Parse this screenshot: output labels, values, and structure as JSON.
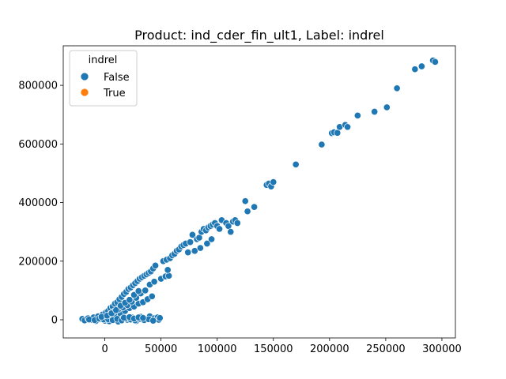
{
  "chart_data": {
    "type": "scatter",
    "title": "Product: ind_cder_fin_ult1, Label: indrel",
    "xlabel": "",
    "ylabel": "",
    "xlim": [
      -37000,
      312000
    ],
    "ylim": [
      -62000,
      935000
    ],
    "x_ticks": [
      0,
      50000,
      100000,
      150000,
      200000,
      250000,
      300000
    ],
    "x_tick_labels": [
      "0",
      "50000",
      "100000",
      "150000",
      "200000",
      "250000",
      "300000"
    ],
    "y_ticks": [
      0,
      200000,
      400000,
      600000,
      800000
    ],
    "y_tick_labels": [
      "0",
      "200000",
      "400000",
      "600000",
      "800000"
    ],
    "grid": false,
    "legend": {
      "title": "indrel",
      "placement": "top-left",
      "entries": [
        {
          "name": "False",
          "color": "#1f77b4"
        },
        {
          "name": "True",
          "color": "#ff7f0e"
        }
      ]
    },
    "series": [
      {
        "name": "False",
        "color": "#1f77b4",
        "points": [
          [
            -20000,
            3000
          ],
          [
            -18000,
            -2000
          ],
          [
            -15000,
            5000
          ],
          [
            -12000,
            0
          ],
          [
            -10000,
            8000
          ],
          [
            -8000,
            -4000
          ],
          [
            -6000,
            12000
          ],
          [
            -4000,
            2000
          ],
          [
            -2000,
            18000
          ],
          [
            0,
            -3000
          ],
          [
            1000,
            25000
          ],
          [
            2000,
            6000
          ],
          [
            3000,
            30000
          ],
          [
            4000,
            -5000
          ],
          [
            5000,
            40000
          ],
          [
            6000,
            10000
          ],
          [
            7000,
            45000
          ],
          [
            8000,
            2000
          ],
          [
            9000,
            55000
          ],
          [
            10000,
            15000
          ],
          [
            11000,
            60000
          ],
          [
            12000,
            -6000
          ],
          [
            13000,
            70000
          ],
          [
            14000,
            20000
          ],
          [
            15000,
            78000
          ],
          [
            16000,
            5000
          ],
          [
            17000,
            88000
          ],
          [
            18000,
            30000
          ],
          [
            19000,
            95000
          ],
          [
            20000,
            0
          ],
          [
            21000,
            105000
          ],
          [
            22000,
            40000
          ],
          [
            23000,
            110000
          ],
          [
            24000,
            8000
          ],
          [
            25000,
            118000
          ],
          [
            26000,
            45000
          ],
          [
            27000,
            125000
          ],
          [
            28000,
            -4000
          ],
          [
            29000,
            132000
          ],
          [
            30000,
            55000
          ],
          [
            31000,
            140000
          ],
          [
            32000,
            10000
          ],
          [
            33000,
            145000
          ],
          [
            34000,
            60000
          ],
          [
            35000,
            150000
          ],
          [
            36000,
            3000
          ],
          [
            37000,
            155000
          ],
          [
            38000,
            70000
          ],
          [
            39000,
            160000
          ],
          [
            40000,
            12000
          ],
          [
            41000,
            165000
          ],
          [
            42000,
            80000
          ],
          [
            43000,
            175000
          ],
          [
            44000,
            5000
          ],
          [
            45000,
            185000
          ],
          [
            46000,
            2000
          ],
          [
            47000,
            8000
          ],
          [
            48000,
            0
          ],
          [
            49000,
            6000
          ],
          [
            50000,
            140000
          ],
          [
            52000,
            200000
          ],
          [
            54000,
            148000
          ],
          [
            55000,
            205000
          ],
          [
            57000,
            150000
          ],
          [
            58000,
            210000
          ],
          [
            56000,
            170000
          ],
          [
            60000,
            220000
          ],
          [
            62000,
            225000
          ],
          [
            64000,
            235000
          ],
          [
            66000,
            240000
          ],
          [
            68000,
            250000
          ],
          [
            70000,
            255000
          ],
          [
            72000,
            260000
          ],
          [
            74000,
            230000
          ],
          [
            76000,
            265000
          ],
          [
            78000,
            290000
          ],
          [
            80000,
            235000
          ],
          [
            82000,
            275000
          ],
          [
            84000,
            280000
          ],
          [
            85000,
            245000
          ],
          [
            86000,
            300000
          ],
          [
            88000,
            310000
          ],
          [
            90000,
            305000
          ],
          [
            91000,
            260000
          ],
          [
            92000,
            315000
          ],
          [
            94000,
            320000
          ],
          [
            95000,
            275000
          ],
          [
            96000,
            325000
          ],
          [
            98000,
            330000
          ],
          [
            100000,
            320000
          ],
          [
            102000,
            310000
          ],
          [
            104000,
            340000
          ],
          [
            108000,
            330000
          ],
          [
            110000,
            320000
          ],
          [
            112000,
            300000
          ],
          [
            114000,
            335000
          ],
          [
            116000,
            340000
          ],
          [
            118000,
            330000
          ],
          [
            125000,
            405000
          ],
          [
            127000,
            370000
          ],
          [
            133000,
            385000
          ],
          [
            144000,
            460000
          ],
          [
            146000,
            465000
          ],
          [
            148000,
            455000
          ],
          [
            150000,
            470000
          ],
          [
            170000,
            530000
          ],
          [
            193000,
            598000
          ],
          [
            202000,
            637000
          ],
          [
            204000,
            640000
          ],
          [
            207000,
            638000
          ],
          [
            209000,
            658000
          ],
          [
            214000,
            665000
          ],
          [
            216000,
            658000
          ],
          [
            225000,
            697000
          ],
          [
            240000,
            710000
          ],
          [
            251000,
            725000
          ],
          [
            260000,
            790000
          ],
          [
            276000,
            855000
          ],
          [
            282000,
            865000
          ],
          [
            292000,
            885000
          ],
          [
            294000,
            880000
          ],
          [
            -14000,
            1000
          ],
          [
            -9000,
            -1000
          ],
          [
            -5000,
            4000
          ],
          [
            -1000,
            1000
          ],
          [
            3000,
            2000
          ],
          [
            7000,
            -1000
          ],
          [
            11000,
            3000
          ],
          [
            15000,
            -2000
          ],
          [
            19000,
            4000
          ],
          [
            23000,
            1000
          ],
          [
            27000,
            -2000
          ],
          [
            31000,
            3000
          ],
          [
            35000,
            -1000
          ],
          [
            39000,
            2000
          ],
          [
            43000,
            -3000
          ],
          [
            17000,
            7000
          ],
          [
            22000,
            9000
          ],
          [
            26000,
            4000
          ],
          [
            30000,
            8000
          ],
          [
            34000,
            6000
          ],
          [
            5000,
            20000
          ],
          [
            8000,
            28000
          ],
          [
            12000,
            35000
          ],
          [
            16000,
            42000
          ],
          [
            20000,
            50000
          ],
          [
            24000,
            62000
          ],
          [
            28000,
            75000
          ],
          [
            32000,
            90000
          ],
          [
            36000,
            100000
          ],
          [
            40000,
            120000
          ],
          [
            -3000,
            10000
          ],
          [
            2000,
            14000
          ],
          [
            6000,
            22000
          ],
          [
            10000,
            33000
          ],
          [
            14000,
            48000
          ],
          [
            18000,
            58000
          ],
          [
            22000,
            68000
          ],
          [
            26000,
            85000
          ],
          [
            30000,
            98000
          ],
          [
            44000,
            130000
          ]
        ]
      },
      {
        "name": "True",
        "color": "#ff7f0e",
        "points": []
      }
    ]
  }
}
